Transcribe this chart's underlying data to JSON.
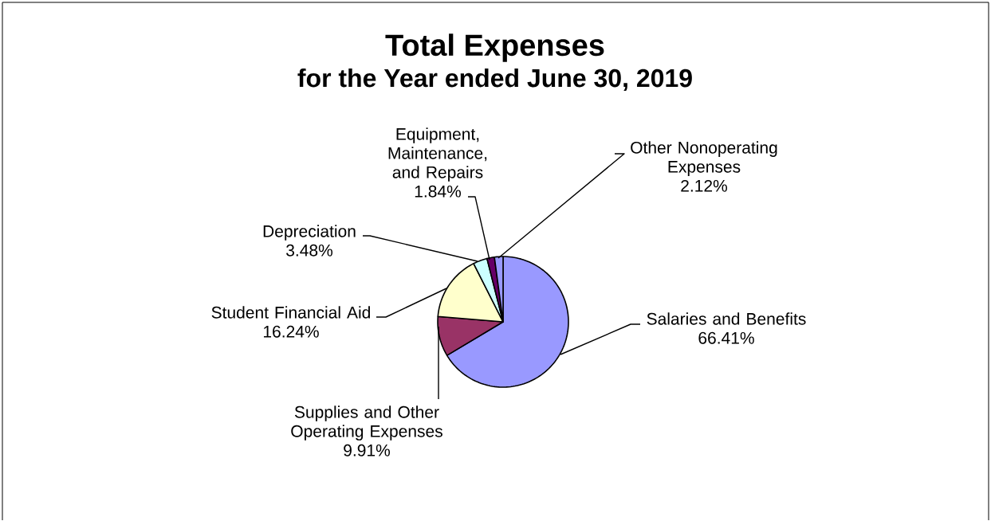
{
  "chart_data": {
    "type": "pie",
    "title": "Total Expenses",
    "subtitle": "for the Year ended June 30, 2019",
    "categories": [
      "Salaries and Benefits",
      "Supplies and Other Operating Expenses",
      "Student Financial Aid",
      "Depreciation",
      "Equipment, Maintenance, and Repairs",
      "Other Nonoperating Expenses"
    ],
    "values": [
      66.41,
      9.91,
      16.24,
      3.48,
      1.84,
      2.12
    ],
    "value_labels": [
      "66.41%",
      "9.91%",
      "16.24%",
      "3.48%",
      "1.84%",
      "2.12%"
    ],
    "colors": [
      "#9999ff",
      "#993366",
      "#ffffcc",
      "#ccffff",
      "#660066",
      "#9999ff"
    ]
  }
}
